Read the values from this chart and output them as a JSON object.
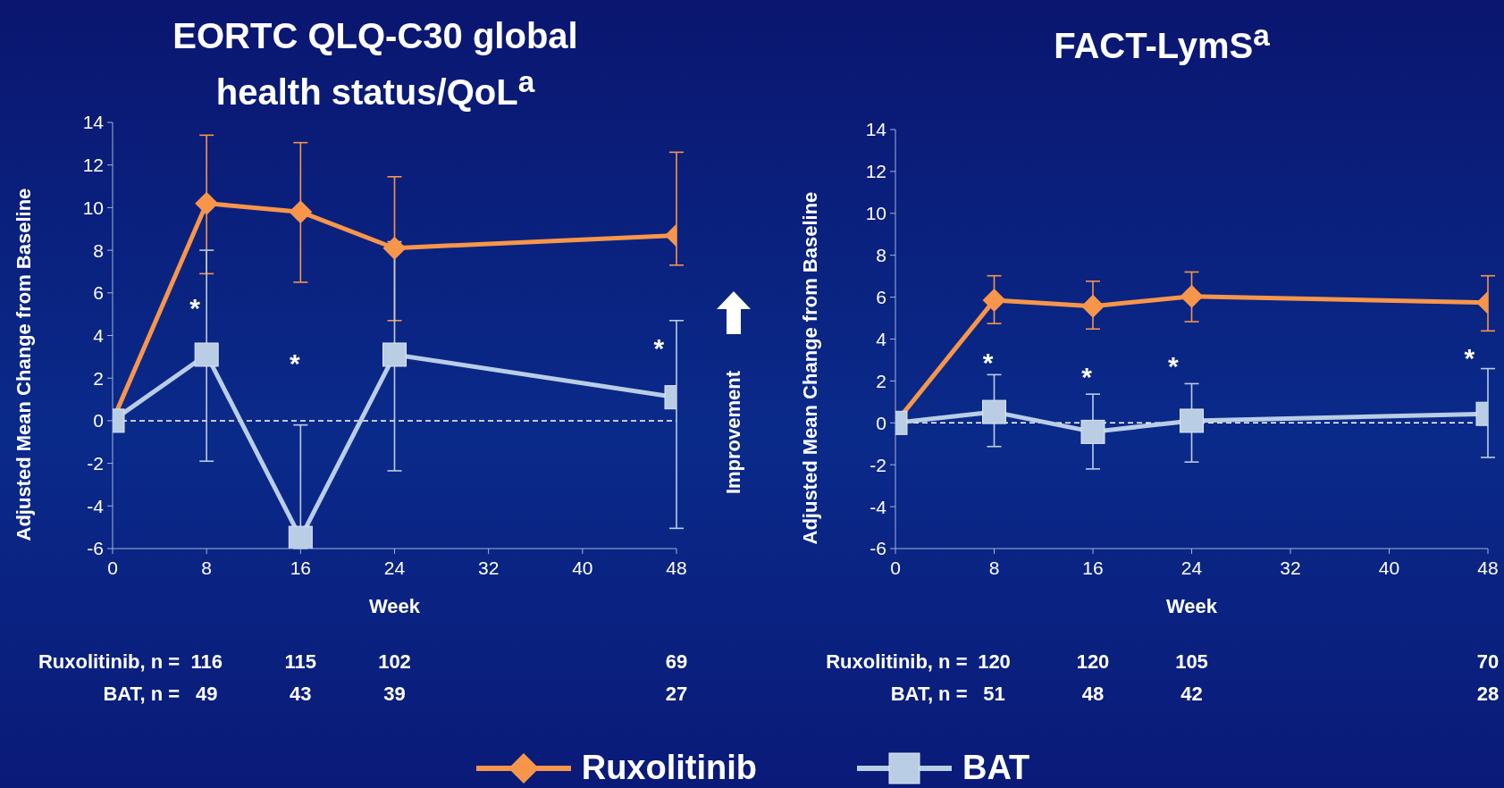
{
  "chart_data": [
    {
      "type": "line",
      "title": "EORTC QLQ-C30 global health status/QoL$^{a}$",
      "xlabel": "Week",
      "ylabel": "Adjusted Mean Change from Baseline",
      "xlim": [
        0,
        48
      ],
      "xticks": [
        0,
        8,
        16,
        24,
        32,
        40,
        48
      ],
      "ylim": [
        -6,
        14
      ],
      "yticks": [
        -6,
        -4,
        -2,
        0,
        2,
        4,
        6,
        8,
        10,
        12,
        14
      ],
      "grid": false,
      "legend": "bottom",
      "line_style": "solid",
      "ref_lines": [
        {
          "axis": "y",
          "value": 0,
          "line_style": "dashed",
          "color": "#ffffff"
        }
      ],
      "series": [
        {
          "name": "Ruxolitinib",
          "color": "#f7964a",
          "marker": "diamond",
          "x": [
            0,
            8,
            16,
            24,
            48
          ],
          "values": [
            0,
            10.2,
            9.8,
            8.1,
            8.7
          ],
          "errors": [
            null,
            [
              6.9,
              13.4
            ],
            [
              6.5,
              13.05
            ],
            [
              4.7,
              11.45
            ],
            [
              7.3,
              12.6
            ]
          ]
        },
        {
          "name": "BAT",
          "color": "#b9cde5",
          "marker": "square",
          "x": [
            0,
            8,
            16,
            24,
            48
          ],
          "values": [
            0,
            3.1,
            -5.5,
            3.1,
            1.1
          ],
          "errors": [
            null,
            [
              -1.9,
              8.0
            ],
            [
              -6,
              -0.2
            ],
            [
              -2.35,
              8.4
            ],
            [
              -5.05,
              4.7
            ]
          ]
        }
      ],
      "annotations": [
        "*",
        "*",
        "*",
        "Ruxolitinib, n =",
        "116",
        "115",
        "102",
        "69",
        "BAT, n =",
        "49",
        "43",
        "39",
        "27",
        "Improvement"
      ]
    },
    {
      "type": "line",
      "title": "FACT-LymS$^{a}$",
      "xlabel": "Week",
      "ylabel": "Adjusted Mean Change from Baseline",
      "xlim": [
        0,
        48
      ],
      "xticks": [
        0,
        8,
        16,
        24,
        32,
        40,
        48
      ],
      "ylim": [
        -6,
        14
      ],
      "yticks": [
        -6,
        -4,
        -2,
        0,
        2,
        4,
        6,
        8,
        10,
        12,
        14
      ],
      "grid": false,
      "line_style": "solid",
      "ref_lines": [
        {
          "axis": "y",
          "value": 0,
          "line_style": "dashed",
          "color": "#ffffff"
        }
      ],
      "series": [
        {
          "color": "#f7964a",
          "marker": "diamond",
          "x": [
            0,
            8,
            16,
            24,
            48
          ],
          "values": [
            0,
            5.85,
            5.57,
            6.04,
            5.74
          ],
          "errors": [
            null,
            [
              4.74,
              7.02
            ],
            [
              4.48,
              6.76
            ],
            [
              4.83,
              7.2
            ],
            [
              4.39,
              7.02
            ]
          ]
        },
        {
          "color": "#b9cde5",
          "marker": "square",
          "x": [
            0,
            8,
            16,
            24,
            48
          ],
          "values": [
            0,
            0.52,
            -0.43,
            0.1,
            0.43
          ],
          "errors": [
            null,
            [
              -1.13,
              2.3
            ],
            [
              -2.2,
              1.37
            ],
            [
              -1.87,
              1.87
            ],
            [
              -1.65,
              2.59
            ]
          ]
        }
      ],
      "annotations": [
        "*",
        "*",
        "*",
        "*",
        "Ruxolitinib, n =",
        "120",
        "120",
        "105",
        "70",
        "BAT, n =",
        "51",
        "48",
        "42",
        "28"
      ]
    }
  ]
}
